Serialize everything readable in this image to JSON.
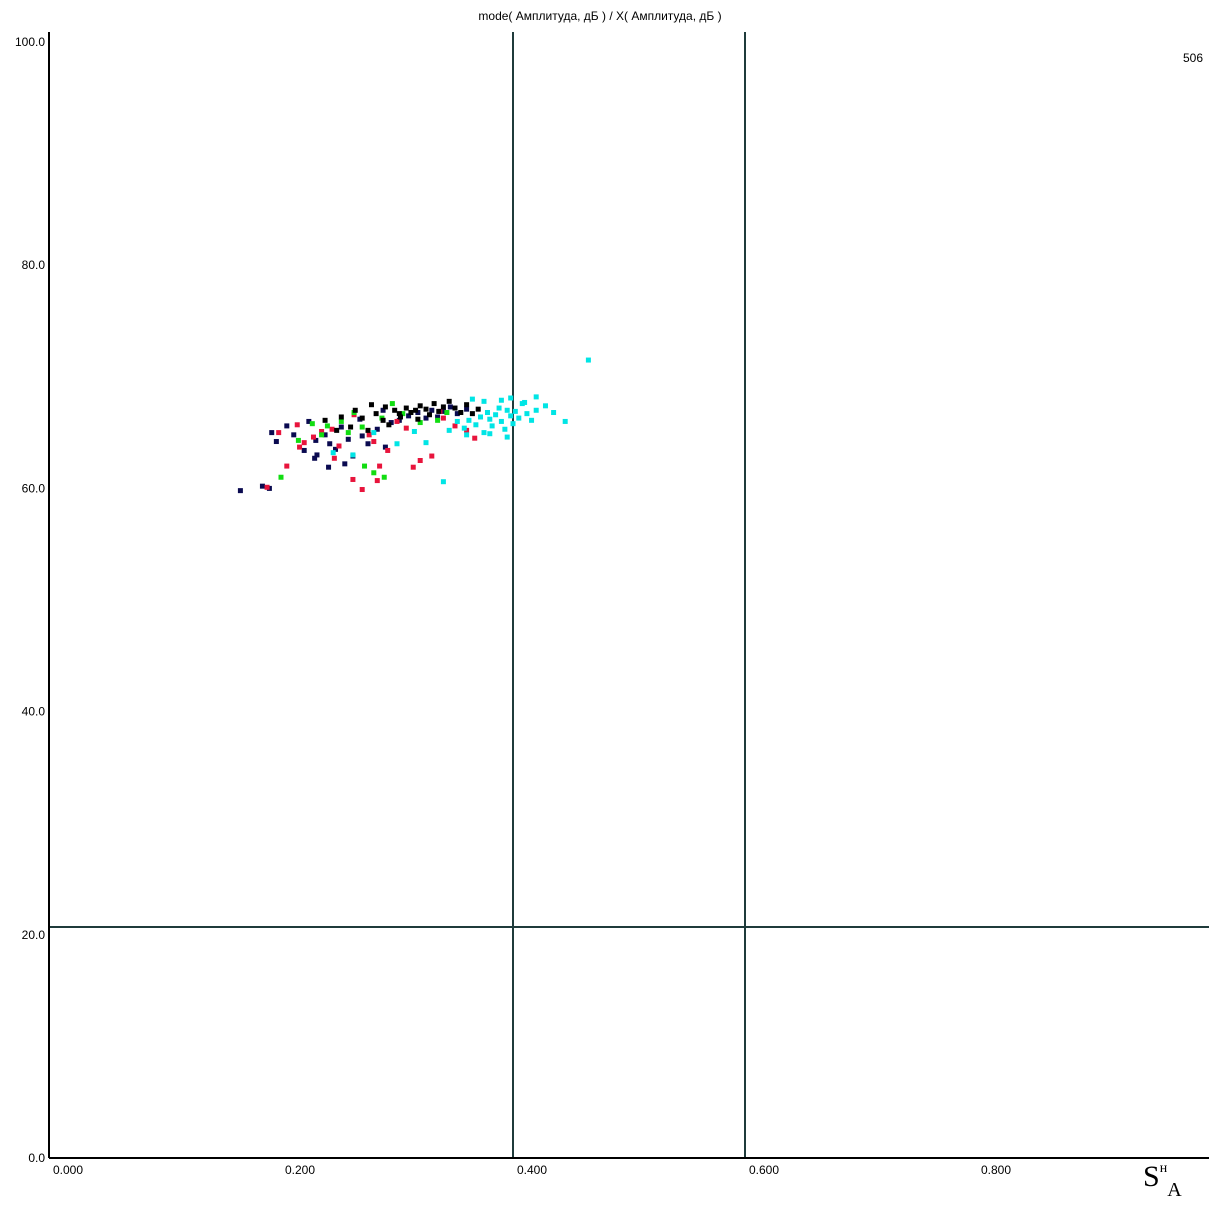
{
  "chart_data": {
    "type": "scatter",
    "title": "mode( Амплитуда, дБ ) / X( Амплитуда, дБ )",
    "corner_label": "506",
    "xlabel_main": "S",
    "xlabel_sup": "н",
    "xlabel_sub": "A",
    "xlim": [
      0.0,
      1.0
    ],
    "ylim": [
      0.0,
      100.0
    ],
    "x_ticks": [
      {
        "value": 0.0,
        "label": "0.000"
      },
      {
        "value": 0.2,
        "label": "0.200"
      },
      {
        "value": 0.4,
        "label": "0.400"
      },
      {
        "value": 0.6,
        "label": "0.600"
      },
      {
        "value": 0.8,
        "label": "0.800"
      }
    ],
    "y_ticks": [
      {
        "value": 0.0,
        "label": "0.0"
      },
      {
        "value": 20.0,
        "label": "20.0"
      },
      {
        "value": 40.0,
        "label": "40.0"
      },
      {
        "value": 60.0,
        "label": "60.0"
      },
      {
        "value": 80.0,
        "label": "80.0"
      },
      {
        "value": 100.0,
        "label": "100.0"
      }
    ],
    "grid": false,
    "reference_lines": {
      "vertical": [
        0.4,
        0.6
      ],
      "horizontal": [
        20.7
      ]
    },
    "colors": {
      "axis": "#000000",
      "reference": "#1f3b3b"
    },
    "series": [
      {
        "color": "#0a0a50",
        "points": [
          [
            0.165,
            59.8
          ],
          [
            0.184,
            60.2
          ],
          [
            0.19,
            60.0
          ],
          [
            0.192,
            65.0
          ],
          [
            0.196,
            64.2
          ],
          [
            0.205,
            65.6
          ],
          [
            0.211,
            64.8
          ],
          [
            0.22,
            63.4
          ],
          [
            0.229,
            62.7
          ],
          [
            0.23,
            64.3
          ],
          [
            0.231,
            63.0
          ],
          [
            0.238,
            64.8
          ],
          [
            0.242,
            64.0
          ],
          [
            0.247,
            63.5
          ],
          [
            0.252,
            65.5
          ],
          [
            0.258,
            64.4
          ],
          [
            0.262,
            62.9
          ],
          [
            0.27,
            64.7
          ],
          [
            0.275,
            64.0
          ],
          [
            0.283,
            65.3
          ],
          [
            0.29,
            63.7
          ],
          [
            0.295,
            65.9
          ],
          [
            0.302,
            66.1
          ],
          [
            0.31,
            66.5
          ],
          [
            0.318,
            66.8
          ],
          [
            0.325,
            66.3
          ],
          [
            0.33,
            67.0
          ],
          [
            0.335,
            66.4
          ],
          [
            0.34,
            66.9
          ],
          [
            0.346,
            67.3
          ],
          [
            0.352,
            66.7
          ],
          [
            0.36,
            67.1
          ],
          [
            0.255,
            62.2
          ],
          [
            0.241,
            61.9
          ],
          [
            0.224,
            66.0
          ],
          [
            0.268,
            66.2
          ],
          [
            0.288,
            67.0
          ]
        ]
      },
      {
        "color": "#e8143c",
        "points": [
          [
            0.188,
            60.1
          ],
          [
            0.205,
            62.0
          ],
          [
            0.214,
            65.7
          ],
          [
            0.22,
            64.1
          ],
          [
            0.228,
            64.6
          ],
          [
            0.235,
            65.1
          ],
          [
            0.244,
            65.3
          ],
          [
            0.25,
            63.8
          ],
          [
            0.262,
            60.8
          ],
          [
            0.27,
            59.9
          ],
          [
            0.28,
            64.2
          ],
          [
            0.285,
            62.0
          ],
          [
            0.292,
            63.4
          ],
          [
            0.3,
            66.0
          ],
          [
            0.308,
            65.4
          ],
          [
            0.32,
            62.5
          ],
          [
            0.33,
            62.9
          ],
          [
            0.34,
            66.3
          ],
          [
            0.35,
            65.6
          ],
          [
            0.36,
            65.2
          ],
          [
            0.367,
            64.5
          ],
          [
            0.314,
            61.9
          ],
          [
            0.283,
            60.7
          ],
          [
            0.276,
            64.8
          ],
          [
            0.246,
            62.7
          ],
          [
            0.198,
            65.0
          ],
          [
            0.216,
            63.7
          ],
          [
            0.263,
            66.6
          ],
          [
            0.337,
            66.9
          ]
        ]
      },
      {
        "color": "#11dd11",
        "points": [
          [
            0.2,
            61.0
          ],
          [
            0.215,
            64.3
          ],
          [
            0.227,
            65.8
          ],
          [
            0.235,
            64.8
          ],
          [
            0.24,
            65.6
          ],
          [
            0.252,
            66.0
          ],
          [
            0.263,
            66.8
          ],
          [
            0.27,
            65.5
          ],
          [
            0.28,
            61.4
          ],
          [
            0.287,
            66.3
          ],
          [
            0.296,
            67.6
          ],
          [
            0.305,
            66.7
          ],
          [
            0.32,
            65.9
          ],
          [
            0.335,
            66.1
          ],
          [
            0.343,
            66.8
          ],
          [
            0.272,
            62.0
          ],
          [
            0.289,
            61.0
          ],
          [
            0.258,
            65.0
          ]
        ]
      },
      {
        "color": "#00e5e5",
        "points": [
          [
            0.245,
            63.2
          ],
          [
            0.262,
            63.0
          ],
          [
            0.28,
            65.0
          ],
          [
            0.3,
            64.0
          ],
          [
            0.315,
            65.1
          ],
          [
            0.325,
            64.1
          ],
          [
            0.34,
            60.6
          ],
          [
            0.345,
            65.2
          ],
          [
            0.352,
            66.0
          ],
          [
            0.358,
            65.4
          ],
          [
            0.362,
            66.1
          ],
          [
            0.368,
            65.7
          ],
          [
            0.372,
            66.4
          ],
          [
            0.375,
            65.0
          ],
          [
            0.378,
            66.8
          ],
          [
            0.38,
            66.2
          ],
          [
            0.382,
            65.6
          ],
          [
            0.385,
            66.6
          ],
          [
            0.388,
            67.2
          ],
          [
            0.39,
            66.0
          ],
          [
            0.393,
            65.3
          ],
          [
            0.395,
            67.0
          ],
          [
            0.398,
            66.5
          ],
          [
            0.4,
            65.8
          ],
          [
            0.402,
            66.9
          ],
          [
            0.405,
            66.3
          ],
          [
            0.408,
            67.6
          ],
          [
            0.412,
            66.7
          ],
          [
            0.416,
            66.1
          ],
          [
            0.42,
            67.0
          ],
          [
            0.428,
            67.4
          ],
          [
            0.435,
            66.8
          ],
          [
            0.445,
            66.0
          ],
          [
            0.465,
            71.5
          ],
          [
            0.365,
            68.0
          ],
          [
            0.375,
            67.8
          ],
          [
            0.39,
            67.9
          ],
          [
            0.398,
            68.1
          ],
          [
            0.41,
            67.7
          ],
          [
            0.42,
            68.2
          ],
          [
            0.38,
            64.9
          ],
          [
            0.395,
            64.6
          ],
          [
            0.36,
            64.8
          ]
        ]
      },
      {
        "color": "#000000",
        "points": [
          [
            0.238,
            66.1
          ],
          [
            0.248,
            65.2
          ],
          [
            0.26,
            65.5
          ],
          [
            0.27,
            66.3
          ],
          [
            0.275,
            65.2
          ],
          [
            0.282,
            66.7
          ],
          [
            0.288,
            66.1
          ],
          [
            0.293,
            65.7
          ],
          [
            0.298,
            67.0
          ],
          [
            0.303,
            66.4
          ],
          [
            0.308,
            67.2
          ],
          [
            0.312,
            66.8
          ],
          [
            0.316,
            67.0
          ],
          [
            0.32,
            67.4
          ],
          [
            0.325,
            67.1
          ],
          [
            0.328,
            66.6
          ],
          [
            0.332,
            67.6
          ],
          [
            0.336,
            66.9
          ],
          [
            0.34,
            67.3
          ],
          [
            0.345,
            67.8
          ],
          [
            0.35,
            67.2
          ],
          [
            0.355,
            66.8
          ],
          [
            0.36,
            67.5
          ],
          [
            0.365,
            66.7
          ],
          [
            0.37,
            67.1
          ],
          [
            0.318,
            66.2
          ],
          [
            0.302,
            66.7
          ],
          [
            0.29,
            67.3
          ],
          [
            0.278,
            67.5
          ],
          [
            0.264,
            67.0
          ],
          [
            0.252,
            66.4
          ]
        ]
      }
    ]
  }
}
